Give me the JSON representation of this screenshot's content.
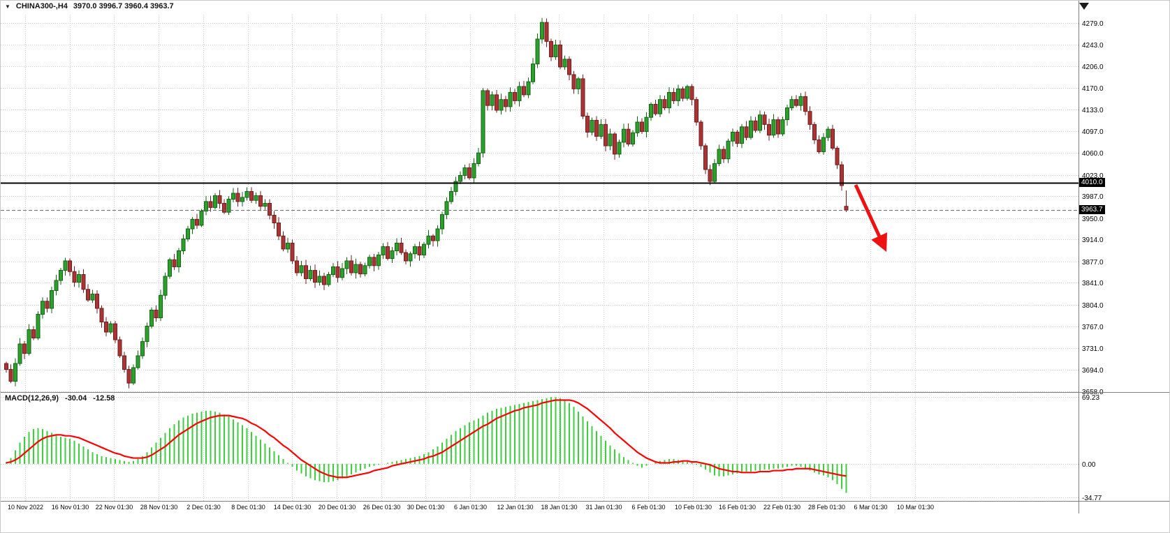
{
  "header": {
    "dropdown_icon": "▼",
    "symbol_period": "CHINA300-,H4",
    "ohlc": "3970.0 3996.7 3960.4 3963.7"
  },
  "price_axis": {
    "ticks": [
      "4279.0",
      "4243.0",
      "4206.0",
      "4170.0",
      "4133.0",
      "4097.0",
      "4060.0",
      "4023.0",
      "3987.0",
      "3950.0",
      "3914.0",
      "3877.0",
      "3841.0",
      "3804.0",
      "3767.0",
      "3731.0",
      "3694.0",
      "3658.0"
    ],
    "line_badge": "4010.0",
    "price_badge": "3963.7"
  },
  "macd_panel": {
    "name": "MACD(12,26,9)",
    "value_main": "-30.04",
    "value_signal": "-12.58",
    "ticks": [
      "69.23",
      "0.00",
      "-34.77"
    ]
  },
  "colors": {
    "bull_fill": "#2ca02c",
    "bull_stroke": "#136313",
    "bear_fill": "#aa3333",
    "bear_stroke": "#701d1d",
    "grid": "#c8c8c8",
    "separator": "#7e7e7e",
    "hline": "#000000",
    "price_line": "#6e6e6e",
    "macd_hist": "#3ecf3e",
    "macd_signal": "#ff0000",
    "arrow": "#ed1111",
    "axis_text": "#000000"
  },
  "chart_data": {
    "type": "candlestick",
    "symbol": "CHINA300-",
    "timeframe": "H4",
    "ylim": [
      3658.0,
      4279.0
    ],
    "horizontal_line": 4010.0,
    "current_price": 3963.7,
    "first_open": 3705,
    "last_bar": {
      "open": 3970.0,
      "high": 3996.7,
      "low": 3960.4,
      "close": 3963.7
    },
    "closes": [
      3695,
      3675,
      3705,
      3738,
      3722,
      3762,
      3748,
      3788,
      3810,
      3798,
      3828,
      3845,
      3862,
      3878,
      3860,
      3842,
      3855,
      3830,
      3812,
      3822,
      3798,
      3775,
      3758,
      3772,
      3745,
      3718,
      3695,
      3672,
      3698,
      3718,
      3742,
      3768,
      3795,
      3782,
      3820,
      3852,
      3880,
      3868,
      3895,
      3915,
      3932,
      3948,
      3938,
      3962,
      3978,
      3968,
      3988,
      3975,
      3960,
      3982,
      3992,
      3978,
      3985,
      3995,
      3980,
      3988,
      3970,
      3975,
      3955,
      3942,
      3920,
      3898,
      3908,
      3878,
      3858,
      3870,
      3848,
      3862,
      3842,
      3852,
      3838,
      3855,
      3868,
      3850,
      3865,
      3878,
      3858,
      3872,
      3856,
      3870,
      3884,
      3870,
      3888,
      3902,
      3882,
      3895,
      3908,
      3892,
      3878,
      3890,
      3902,
      3888,
      3906,
      3920,
      3912,
      3932,
      3956,
      3978,
      3995,
      4012,
      4022,
      4035,
      4018,
      4042,
      4060,
      4165,
      4140,
      4158,
      4132,
      4150,
      4138,
      4162,
      4148,
      4172,
      4158,
      4180,
      4210,
      4252,
      4280,
      4248,
      4222,
      4242,
      4205,
      4218,
      4192,
      4168,
      4185,
      4122,
      4095,
      4115,
      4088,
      4108,
      4072,
      4092,
      4058,
      4078,
      4100,
      4075,
      4094,
      4112,
      4096,
      4120,
      4142,
      4126,
      4150,
      4136,
      4162,
      4148,
      4168,
      4152,
      4172,
      4150,
      4112,
      4072,
      4032,
      4012,
      4042,
      4066,
      4050,
      4080,
      4095,
      4076,
      4104,
      4086,
      4114,
      4098,
      4124,
      4108,
      4090,
      4116,
      4092,
      4116,
      4136,
      4150,
      4140,
      4155,
      4130,
      4108,
      4082,
      4062,
      4086,
      4100,
      4068,
      4040,
      4005,
      3963.7
    ],
    "x_labels": [
      "10 Nov 2022",
      "16 Nov 01:30",
      "22 Nov 01:30",
      "28 Nov 01:30",
      "2 Dec 01:30",
      "8 Dec 01:30",
      "14 Dec 01:30",
      "20 Dec 01:30",
      "26 Dec 01:30",
      "30 Dec 01:30",
      "6 Jan 01:30",
      "12 Jan 01:30",
      "18 Jan 01:30",
      "31 Jan 01:30",
      "6 Feb 01:30",
      "10 Feb 01:30",
      "16 Feb 01:30",
      "22 Feb 01:30",
      "28 Feb 01:30",
      "6 Mar 01:30",
      "10 Mar 01:30"
    ],
    "macd": {
      "ylim": [
        -34.77,
        69.23
      ],
      "hist": [
        2,
        6,
        14,
        22,
        28,
        33,
        36,
        37,
        36,
        34,
        32,
        30,
        28,
        27,
        26,
        24,
        21,
        18,
        15,
        12,
        10,
        8,
        7,
        6,
        5,
        4,
        3,
        2,
        3,
        5,
        8,
        12,
        17,
        22,
        27,
        32,
        37,
        41,
        45,
        48,
        50,
        52,
        53,
        54,
        55,
        55,
        54,
        53,
        51,
        49,
        46,
        43,
        40,
        37,
        33,
        29,
        25,
        21,
        17,
        13,
        9,
        5,
        1,
        -3,
        -7,
        -10,
        -13,
        -15,
        -17,
        -18,
        -19,
        -19,
        -18,
        -17,
        -15,
        -13,
        -11,
        -9,
        -7,
        -5,
        -3,
        -2,
        -1,
        0,
        1,
        2,
        3,
        4,
        5,
        6,
        7,
        8,
        10,
        12,
        15,
        18,
        22,
        26,
        30,
        34,
        37,
        40,
        43,
        45,
        47,
        50,
        53,
        55,
        57,
        58,
        59,
        60,
        61,
        62,
        63,
        64,
        65,
        66,
        67,
        68,
        69,
        69,
        68,
        66,
        63,
        59,
        54,
        49,
        44,
        39,
        34,
        29,
        24,
        19,
        15,
        11,
        7,
        4,
        1,
        -2,
        -4,
        -2,
        0,
        2,
        3,
        4,
        5,
        5,
        4,
        3,
        2,
        1,
        -1,
        -3,
        -6,
        -9,
        -12,
        -13,
        -13,
        -12,
        -11,
        -10,
        -9,
        -8,
        -8,
        -7,
        -7,
        -6,
        -6,
        -5,
        -5,
        -4,
        -3,
        -2,
        -2,
        -3,
        -5,
        -7,
        -9,
        -11,
        -12,
        -14,
        -17,
        -21,
        -26,
        -30.04
      ],
      "signal": [
        1,
        2,
        4,
        7,
        11,
        15,
        19,
        23,
        26,
        28,
        29,
        30,
        30,
        29,
        29,
        28,
        27,
        25,
        23,
        21,
        19,
        17,
        15,
        13,
        11,
        10,
        8,
        7,
        6,
        6,
        6,
        7,
        9,
        12,
        15,
        18,
        22,
        26,
        30,
        33,
        36,
        39,
        42,
        44,
        46,
        48,
        49,
        50,
        50,
        50,
        49,
        48,
        47,
        45,
        42,
        40,
        37,
        34,
        30,
        27,
        23,
        19,
        16,
        12,
        8,
        4,
        1,
        -2,
        -5,
        -8,
        -10,
        -12,
        -13,
        -14,
        -14,
        -14,
        -13,
        -12,
        -11,
        -10,
        -9,
        -7,
        -6,
        -5,
        -4,
        -2,
        -1,
        0,
        1,
        2,
        3,
        4,
        5,
        7,
        8,
        10,
        12,
        15,
        18,
        21,
        24,
        27,
        30,
        33,
        36,
        39,
        41,
        44,
        47,
        49,
        51,
        53,
        55,
        56,
        58,
        59,
        60,
        61,
        63,
        64,
        65,
        66,
        66,
        66,
        66,
        65,
        63,
        60,
        57,
        53,
        49,
        45,
        41,
        37,
        32,
        28,
        24,
        20,
        16,
        12,
        9,
        6,
        4,
        2,
        1,
        1,
        1,
        2,
        2,
        3,
        3,
        2,
        2,
        1,
        0,
        -1,
        -3,
        -5,
        -6,
        -7,
        -8,
        -8,
        -9,
        -9,
        -9,
        -9,
        -8,
        -8,
        -8,
        -7,
        -7,
        -7,
        -6,
        -6,
        -5,
        -5,
        -5,
        -5,
        -6,
        -7,
        -8,
        -9,
        -10,
        -11,
        -12,
        -12.58
      ]
    }
  }
}
